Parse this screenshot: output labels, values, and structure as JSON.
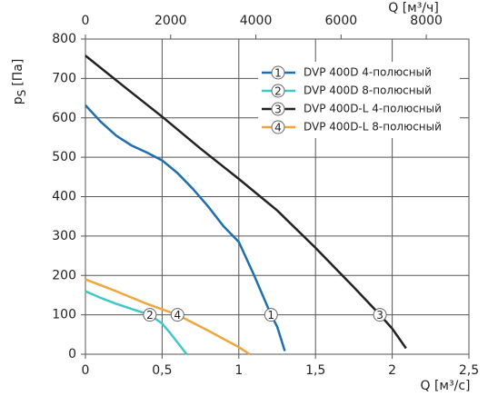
{
  "chart_data": {
    "type": "line",
    "x_label": "Q [м³/с]",
    "x2_label": "Q [м³/ч]",
    "y_label": [
      "p",
      "S",
      "[Па]"
    ],
    "xlim": [
      0,
      2.5
    ],
    "xticks": [
      0,
      {
        "value": 0.5,
        "label": "0,5"
      },
      1,
      {
        "value": 1.5,
        "label": "1,5"
      },
      2,
      {
        "value": 2.5,
        "label": "2,5"
      }
    ],
    "x2lim": [
      0,
      9000
    ],
    "x2ticks": [
      0,
      2000,
      4000,
      6000,
      8000
    ],
    "ylim": [
      0,
      800
    ],
    "yticks": [
      0,
      100,
      200,
      300,
      400,
      500,
      600,
      700,
      800
    ],
    "grid": true,
    "legend": "top-right",
    "series": [
      {
        "name": "DVP 400D 4-полюсный",
        "marker": "1",
        "color": "#1f6fae",
        "x": [
          0,
          0.1,
          0.2,
          0.3,
          0.4,
          0.5,
          0.6,
          0.7,
          0.8,
          0.9,
          1.0,
          1.1,
          1.21,
          1.25,
          1.3
        ],
        "values": [
          632,
          590,
          555,
          530,
          512,
          492,
          460,
          420,
          375,
          325,
          285,
          200,
          100,
          70,
          8
        ]
      },
      {
        "name": "DVP 400D 8-полюсный",
        "marker": "2",
        "color": "#3fc8c8",
        "x": [
          0,
          0.1,
          0.2,
          0.3,
          0.42,
          0.5,
          0.55,
          0.6,
          0.66
        ],
        "values": [
          160,
          143,
          128,
          115,
          100,
          78,
          55,
          30,
          0
        ]
      },
      {
        "name": "DVP 400D-L 4-полюсный",
        "marker": "3",
        "color": "#222222",
        "x": [
          0,
          0.25,
          0.5,
          0.75,
          1.0,
          1.25,
          1.5,
          1.75,
          1.92,
          2.0,
          2.09
        ],
        "values": [
          758,
          680,
          603,
          522,
          445,
          365,
          270,
          170,
          100,
          65,
          15
        ]
      },
      {
        "name": "DVP 400D-L 8-полюсный",
        "marker": "4",
        "color": "#f0a63a",
        "x": [
          0,
          0.2,
          0.4,
          0.6,
          0.8,
          1.0,
          1.07
        ],
        "values": [
          190,
          160,
          128,
          100,
          60,
          18,
          0
        ]
      }
    ]
  }
}
